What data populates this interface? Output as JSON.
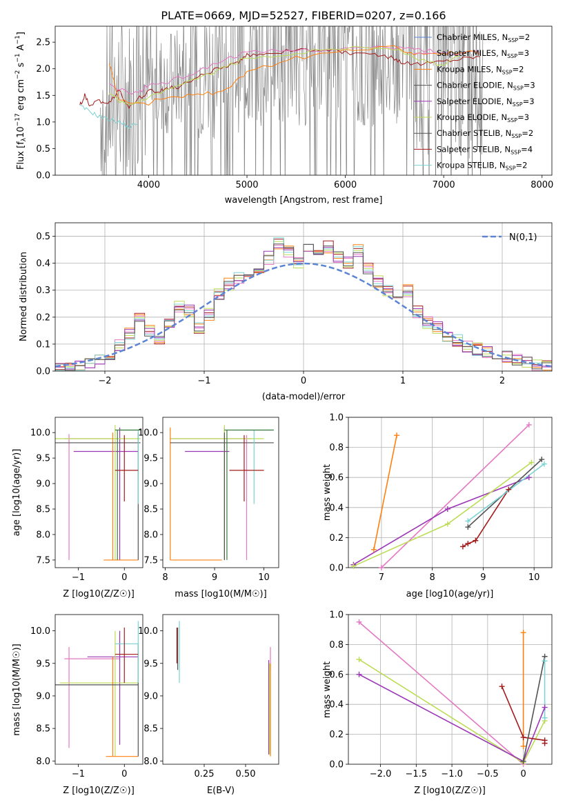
{
  "chart_data": [
    {
      "type": "line",
      "title": "PLATE=0669, MJD=52527, FIBERID=0207, z=0.166",
      "xlabel": "wavelength [Angstrom, rest frame]",
      "ylabel": "Flux [f_λ10^-17 erg cm^-2 s^-1 A^-1]",
      "xlim": [
        3050,
        8100
      ],
      "ylim": [
        0,
        2.8
      ],
      "xticks": [
        4000,
        5000,
        6000,
        7000,
        8000
      ],
      "yticks": [
        0.0,
        0.5,
        1.0,
        1.5,
        2.0,
        2.5
      ],
      "legend": [
        "Chabrier MILES, N_SSP=2",
        "Salpeter MILES, N_SSP=3",
        "Kroupa MILES, N_SSP=2",
        "Chabrier ELODIE, N_SSP=3",
        "Salpeter ELODIE, N_SSP=3",
        "Kroupa ELODIE, N_SSP=3",
        "Chabrier STELIB, N_SSP=2",
        "Salpeter STELIB, N_SSP=4",
        "Kroupa STELIB, N_SSP=2"
      ],
      "series": [
        {
          "name": "data",
          "color": "#808080",
          "x": [
            3500,
            7400
          ],
          "y": [
            1.3,
            2.3
          ]
        },
        {
          "name": "Salpeter STELIB, N_SSP=4",
          "color": "#a31a1a",
          "x": [
            3300,
            3350,
            3400,
            3500,
            3600,
            3700,
            3800,
            3900,
            3950,
            4000,
            4100,
            4200,
            4300,
            4500,
            4700,
            4900,
            5000,
            5200,
            5500,
            5800,
            6000,
            6300,
            6500,
            6600,
            6800,
            7000,
            7200,
            7400
          ],
          "y": [
            1.3,
            1.5,
            1.3,
            1.4,
            1.35,
            1.6,
            1.25,
            1.45,
            1.5,
            1.6,
            1.55,
            1.65,
            1.65,
            1.85,
            2.0,
            2.1,
            2.25,
            2.3,
            2.35,
            2.35,
            2.3,
            2.25,
            2.2,
            2.1,
            2.1,
            2.15,
            2.2,
            2.25
          ]
        },
        {
          "name": "Salpeter MILES, N_SSP=3",
          "color": "#e377c2",
          "x": [
            3600,
            3700,
            3900,
            4000,
            4200,
            4500,
            4800,
            5000,
            5500,
            6000,
            6500,
            6800,
            7000,
            7200,
            7400
          ],
          "y": [
            1.7,
            1.6,
            1.55,
            1.7,
            1.75,
            1.95,
            2.2,
            2.3,
            2.35,
            2.38,
            2.4,
            2.35,
            2.3,
            2.3,
            2.35
          ]
        },
        {
          "name": "Kroupa MILES, N_SSP=2",
          "color": "#ff7f0e",
          "x": [
            3600,
            3700,
            4000,
            4200,
            4500,
            4800,
            5000,
            5500,
            6000,
            6500,
            6700,
            7000,
            7200,
            7400
          ],
          "y": [
            2.1,
            1.4,
            1.35,
            1.5,
            1.5,
            1.6,
            1.95,
            2.2,
            2.35,
            2.4,
            2.3,
            2.3,
            2.3,
            2.3
          ]
        },
        {
          "name": "Kroupa ELODIE, N_SSP=3",
          "color": "#bcdc55",
          "x": [
            3600,
            3800,
            4000,
            4200,
            4500,
            4800,
            5000,
            5500,
            6000,
            6500,
            6800,
            7000,
            7200
          ],
          "y": [
            1.5,
            1.3,
            1.45,
            1.6,
            1.8,
            2.05,
            2.2,
            2.3,
            2.4,
            2.38,
            2.15,
            2.05,
            2.3
          ]
        },
        {
          "name": "Kroupa STELIB, N_SSP=2",
          "color": "#7ad3d3",
          "x": [
            3300,
            3400,
            3500,
            3600,
            3700,
            3800,
            3900
          ],
          "y": [
            1.3,
            1.2,
            1.1,
            1.05,
            1.0,
            0.9,
            1.0
          ]
        }
      ]
    },
    {
      "type": "histogram",
      "xlabel": "(data-model)/error",
      "ylabel": "Normed distribution",
      "xlim": [
        -2.5,
        2.5
      ],
      "ylim": [
        0,
        0.55
      ],
      "xticks": [
        -2,
        -1,
        0,
        1,
        2
      ],
      "yticks": [
        0.0,
        0.1,
        0.2,
        0.3,
        0.4,
        0.5
      ],
      "legend": [
        "N(0,1)"
      ],
      "series": [
        {
          "name": "N(0,1)",
          "color": "#5b84d4",
          "mean": 0,
          "sigma": 1
        }
      ],
      "hist_values": [
        0.01,
        0.01,
        0.02,
        0.03,
        0.04,
        0.06,
        0.1,
        0.14,
        0.19,
        0.15,
        0.12,
        0.18,
        0.24,
        0.22,
        0.16,
        0.21,
        0.28,
        0.32,
        0.35,
        0.36,
        0.38,
        0.42,
        0.47,
        0.44,
        0.4,
        0.45,
        0.44,
        0.46,
        0.42,
        0.4,
        0.45,
        0.38,
        0.33,
        0.3,
        0.26,
        0.3,
        0.22,
        0.18,
        0.16,
        0.13,
        0.11,
        0.09,
        0.08,
        0.07,
        0.06,
        0.05,
        0.04,
        0.03,
        0.02,
        0.02
      ],
      "hist_colors": [
        "#a31a1a",
        "#ff7f0e",
        "#e377c2",
        "#bcdc55",
        "#7ad3d3",
        "#9a35b5",
        "#525252"
      ]
    },
    {
      "type": "scatter",
      "xlabel": "Z [log10(Z/Z☉)]",
      "ylabel": "age [log10(age/yr)]",
      "xlim": [
        -1.5,
        0.4
      ],
      "ylim": [
        7.35,
        10.3
      ],
      "xticks": [
        -1,
        0
      ],
      "yticks": [
        7.5,
        8.0,
        8.5,
        9.0,
        9.5,
        10.0
      ]
    },
    {
      "type": "scatter",
      "xlabel": "mass [log10(M/M☉)]",
      "ylabel": "",
      "xlim": [
        7.95,
        10.3
      ],
      "ylim": [
        7.35,
        10.3
      ],
      "xticks": [
        8,
        9,
        10
      ],
      "yticks": [
        7.5,
        8.0,
        8.5,
        9.0,
        9.5,
        10.0
      ]
    },
    {
      "type": "line",
      "xlabel": "age [log10(age/yr)]",
      "ylabel": "mass weight",
      "xlim": [
        6.35,
        10.35
      ],
      "ylim": [
        0,
        1
      ],
      "xticks": [
        7,
        8,
        9,
        10
      ],
      "yticks": [
        0.0,
        0.2,
        0.4,
        0.6,
        0.8,
        1.0
      ],
      "series": [
        {
          "name": "Kroupa MILES, N_SSP=2",
          "color": "#ff7f0e",
          "x": [
            6.85,
            7.3
          ],
          "y": [
            0.12,
            0.88
          ]
        },
        {
          "name": "Salpeter MILES, N_SSP=3",
          "color": "#e377c2",
          "x": [
            7.0,
            9.9
          ],
          "y": [
            0.0,
            0.95
          ]
        },
        {
          "name": "Salpeter ELODIE, N_SSP=3",
          "color": "#9a35b5",
          "x": [
            6.45,
            8.3,
            9.9
          ],
          "y": [
            0.02,
            0.39,
            0.6
          ]
        },
        {
          "name": "Kroupa ELODIE, N_SSP=3",
          "color": "#bcdc55",
          "x": [
            6.45,
            8.3,
            9.95
          ],
          "y": [
            0.01,
            0.29,
            0.7
          ]
        },
        {
          "name": "Salpeter STELIB, N_SSP=4",
          "color": "#a31a1a",
          "x": [
            8.6,
            8.7,
            8.85,
            9.5
          ],
          "y": [
            0.14,
            0.16,
            0.18,
            0.52
          ]
        },
        {
          "name": "Chabrier STELIB, N_SSP=2",
          "color": "#525252",
          "x": [
            8.7,
            10.15
          ],
          "y": [
            0.27,
            0.72
          ]
        },
        {
          "name": "Kroupa STELIB, N_SSP=2",
          "color": "#7ad3d3",
          "x": [
            8.7,
            10.2
          ],
          "y": [
            0.31,
            0.69
          ]
        }
      ]
    },
    {
      "type": "scatter",
      "xlabel": "Z [log10(Z/Z☉)]",
      "ylabel": "mass [log10(M/M☉)]",
      "xlim": [
        -1.5,
        0.4
      ],
      "ylim": [
        7.95,
        10.25
      ],
      "xticks": [
        -1,
        0
      ],
      "yticks": [
        8.0,
        8.5,
        9.0,
        9.5,
        10.0
      ]
    },
    {
      "type": "scatter",
      "xlabel": "E(B-V)",
      "ylabel": "",
      "xlim": [
        0.0,
        0.7
      ],
      "ylim": [
        7.95,
        10.25
      ],
      "xticks": [
        0.25,
        0.5
      ],
      "yticks": [
        8.0,
        8.5,
        9.0,
        9.5,
        10.0
      ]
    },
    {
      "type": "line",
      "xlabel": "Z [log10(Z/Z☉)]",
      "ylabel": "mass weight",
      "xlim": [
        -2.45,
        0.4
      ],
      "ylim": [
        0,
        1
      ],
      "xticks": [
        -2.0,
        -1.5,
        -1.0,
        -0.5,
        0.0
      ],
      "yticks": [
        0.0,
        0.2,
        0.4,
        0.6,
        0.8,
        1.0
      ],
      "series": [
        {
          "name": "Salpeter MILES, N_SSP=3",
          "color": "#e377c2",
          "x": [
            -2.3,
            0.0
          ],
          "y": [
            0.95,
            0.0
          ]
        },
        {
          "name": "Kroupa ELODIE, N_SSP=3",
          "color": "#bcdc55",
          "x": [
            -2.3,
            0.0,
            0.3
          ],
          "y": [
            0.7,
            0.01,
            0.29
          ]
        },
        {
          "name": "Salpeter ELODIE, N_SSP=3",
          "color": "#9a35b5",
          "x": [
            -2.3,
            0.0,
            0.3
          ],
          "y": [
            0.6,
            0.02,
            0.38
          ]
        },
        {
          "name": "Kroupa MILES, N_SSP=2",
          "color": "#ff7f0e",
          "x": [
            0.0,
            0.0
          ],
          "y": [
            0.12,
            0.88
          ]
        },
        {
          "name": "Salpeter STELIB, N_SSP=4",
          "color": "#a31a1a",
          "x": [
            -0.3,
            0.0,
            0.3,
            0.3
          ],
          "y": [
            0.52,
            0.18,
            0.16,
            0.14
          ]
        },
        {
          "name": "Chabrier STELIB, N_SSP=2",
          "color": "#525252",
          "x": [
            0.0,
            0.3
          ],
          "y": [
            0.02,
            0.72
          ]
        },
        {
          "name": "Kroupa STELIB, N_SSP=2",
          "color": "#7ad3d3",
          "x": [
            0.3,
            0.3
          ],
          "y": [
            0.31,
            0.69
          ]
        }
      ]
    }
  ]
}
